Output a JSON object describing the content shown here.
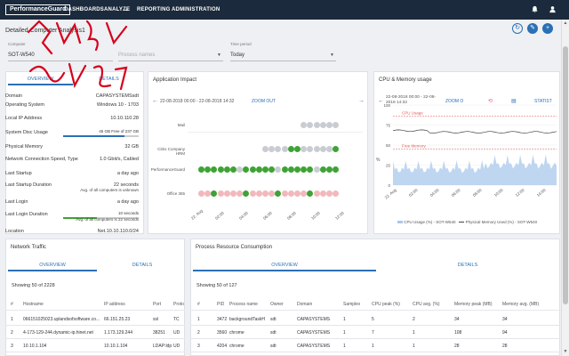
{
  "nav": {
    "logo": "PerformanceGuard",
    "items": [
      "DASHBOARDS",
      "ANALYZE",
      "REPORTING",
      "ADMINISTRATION"
    ]
  },
  "page": {
    "title": "Detailed Computer Analysis1"
  },
  "filters": {
    "computer_label": "Computer",
    "computer_value": "SOT-W540",
    "process_placeholder": "Process names",
    "time_label": "Time period",
    "time_value": "Today"
  },
  "computer_panel": {
    "tabs": [
      "OVERVIEW",
      "DETAILS"
    ],
    "rows": [
      {
        "key": "Domain",
        "value": "CAPASYSTEMSsdt"
      },
      {
        "key": "Operating System",
        "value": "Windows 10 - 1703"
      },
      {
        "key": "Local IP Address",
        "value": "10.10.110.28"
      },
      {
        "key": "System Disc Usage",
        "value": "45 GB Free of 237 GB"
      },
      {
        "key": "Physical Memory",
        "value": "32 GB"
      },
      {
        "key": "Network Connection Speed, Type",
        "value": "1.0 Gbit/s, Cabled"
      },
      {
        "key": "Last Startup",
        "value": "a day ago"
      },
      {
        "key": "Last Startup Duration",
        "value": "22 seconds",
        "sub": "Avg. of all computers is unknown"
      },
      {
        "key": "Last Login",
        "value": "a day ago"
      },
      {
        "key": "Last Login Duration",
        "value": "10 seconds",
        "sub": "Avg. of all computers is 22 seconds"
      },
      {
        "key": "Location",
        "value": "Net.10.10.110.0/24"
      }
    ],
    "disk_used_fraction": 0.81,
    "login_fraction": 0.45
  },
  "app_panel": {
    "title": "Application Impact",
    "range": "22-08-2018 00:00 - 22-08-2018 14:32",
    "zoom_out": "ZOOM OUT",
    "rows": [
      "Mail",
      "Citrix Company HRM",
      "PerformanceGuard",
      "Office 365"
    ],
    "dates": [
      "22. Aug",
      "02:00",
      "04:00",
      "06:00",
      "08:00",
      "10:00",
      "12:00"
    ],
    "colors": {
      "good": "#3ea335",
      "bad": "#f2b8bb",
      "neutral": "#c9cdd2"
    }
  },
  "cpu_panel": {
    "title": "CPU & Memory usage",
    "range": "22-08-2018 00:00 - 22-08-2018 14:32",
    "zoom_out": "ZOOM O",
    "statistics": "STATIST",
    "yticks": [
      "100",
      "75",
      "50",
      "25",
      "0"
    ],
    "y_axis_label": "%",
    "cpu_threshold_label": "CPU Usage",
    "mem_threshold_label": "Free Memory",
    "xticks": [
      "22. Aug",
      "02:00",
      "04:00",
      "06:00",
      "08:00",
      "10:00",
      "12:00",
      "14:00"
    ],
    "legend_cpu": "CPU Usage (%) - SOT-W540",
    "legend_mem": "Physical Memory Used (%) - SOT-W540",
    "colors": {
      "cpu": "#a9c8ec",
      "mem": "#444444",
      "threshold": "#e05a5a"
    }
  },
  "net_panel": {
    "title": "Network Traffic",
    "tabs": [
      "OVERVIEW",
      "DETAILS"
    ],
    "showing": "Showing 50 of 2228",
    "columns": [
      "#",
      "Hostname",
      "IP address",
      "Port",
      "Proto"
    ],
    "rows": [
      [
        "1",
        "066151025023.uplandsofsoftware.co...",
        "66.151.25.23",
        "ssl",
        "TC"
      ],
      [
        "2",
        "4-173-129-244.dynamic-ip.hinet.net",
        "1.173.129.244",
        "38251",
        "UD"
      ],
      [
        "3",
        "10.10.1.104",
        "10.10.1.104",
        "LDAP:ldp",
        "UD"
      ]
    ]
  },
  "proc_panel": {
    "title": "Process Resource Consumption",
    "tabs": [
      "OVERVIEW",
      "DETAILS"
    ],
    "showing": "Showing 50 of 127",
    "columns": [
      "#",
      "PID",
      "Process name",
      "Owner",
      "Domain",
      "Samples",
      "CPU peak (%)",
      "CPU avg. (%)",
      "Memory peak (MB)",
      "Memory avg. (MB)"
    ],
    "rows": [
      [
        "1",
        "3472",
        "backgroundTaskH",
        "sdt",
        "CAPASYSTEMS",
        "1",
        "5",
        "2",
        "34",
        "34"
      ],
      [
        "2",
        "3560",
        "chrome",
        "sdt",
        "CAPASYSTEMS",
        "1",
        "7",
        "1",
        "108",
        "94"
      ],
      [
        "3",
        "4204",
        "chrome",
        "sdt",
        "CAPASYSTEMS",
        "1",
        "1",
        "1",
        "28",
        "28"
      ]
    ]
  }
}
